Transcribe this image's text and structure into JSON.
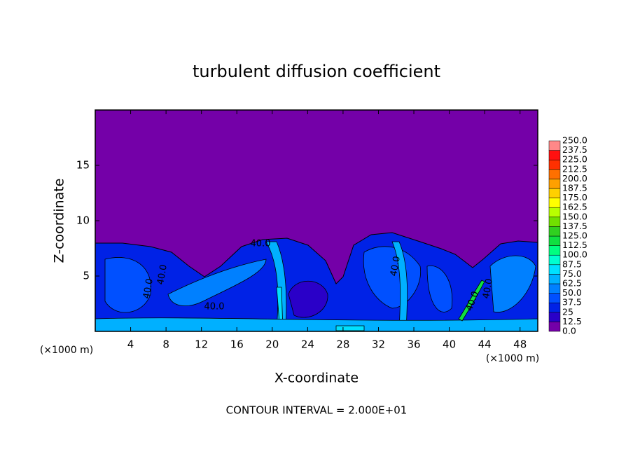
{
  "chart_data": {
    "type": "contour",
    "title": "turbulent diffusion coefficient",
    "xlabel": "X-coordinate",
    "ylabel": "Z-coordinate",
    "x_unit_label": "(×1000 m)",
    "z_unit_label": "(×1000 m)",
    "footer": "CONTOUR INTERVAL = 2.000E+01",
    "xlim": [
      0,
      50
    ],
    "xticks": [
      4,
      8,
      12,
      16,
      20,
      24,
      28,
      32,
      36,
      40,
      44,
      48
    ],
    "ylim": [
      0,
      20
    ],
    "yticks": [
      5,
      10,
      15
    ],
    "contour_label": {
      "value": 40,
      "label": "40.0"
    },
    "colorbar": {
      "levels": [
        {
          "value": 0,
          "label": "0.0"
        },
        12.5,
        25,
        {
          "value": 37.5,
          "label": "37.5"
        },
        {
          "value": 50,
          "label": "50.0"
        },
        62.5,
        {
          "value": 75,
          "label": "75.0"
        },
        87.5,
        {
          "value": 100,
          "label": "100.0"
        },
        112.5,
        {
          "value": 125,
          "label": "125.0"
        },
        137.5,
        {
          "value": 150,
          "label": "150.0"
        },
        162.5,
        {
          "value": 175,
          "label": "175.0"
        },
        187.5,
        {
          "value": 200,
          "label": "200.0"
        },
        212.5,
        {
          "value": 225,
          "label": "225.0"
        },
        237.5,
        {
          "value": 250,
          "label": "250.0"
        }
      ],
      "colors": [
        "#7400a8",
        "#2a00c8",
        "#0022e6",
        "#0050ff",
        "#0080ff",
        "#00b0ff",
        "#00e0ff",
        "#00ffd0",
        "#00ff80",
        "#10e040",
        "#30d020",
        "#70e000",
        "#b8ff00",
        "#ffff00",
        "#ffd000",
        "#ffa000",
        "#ff7000",
        "#ff3000",
        "#ff1010",
        "#ff8888"
      ]
    }
  }
}
